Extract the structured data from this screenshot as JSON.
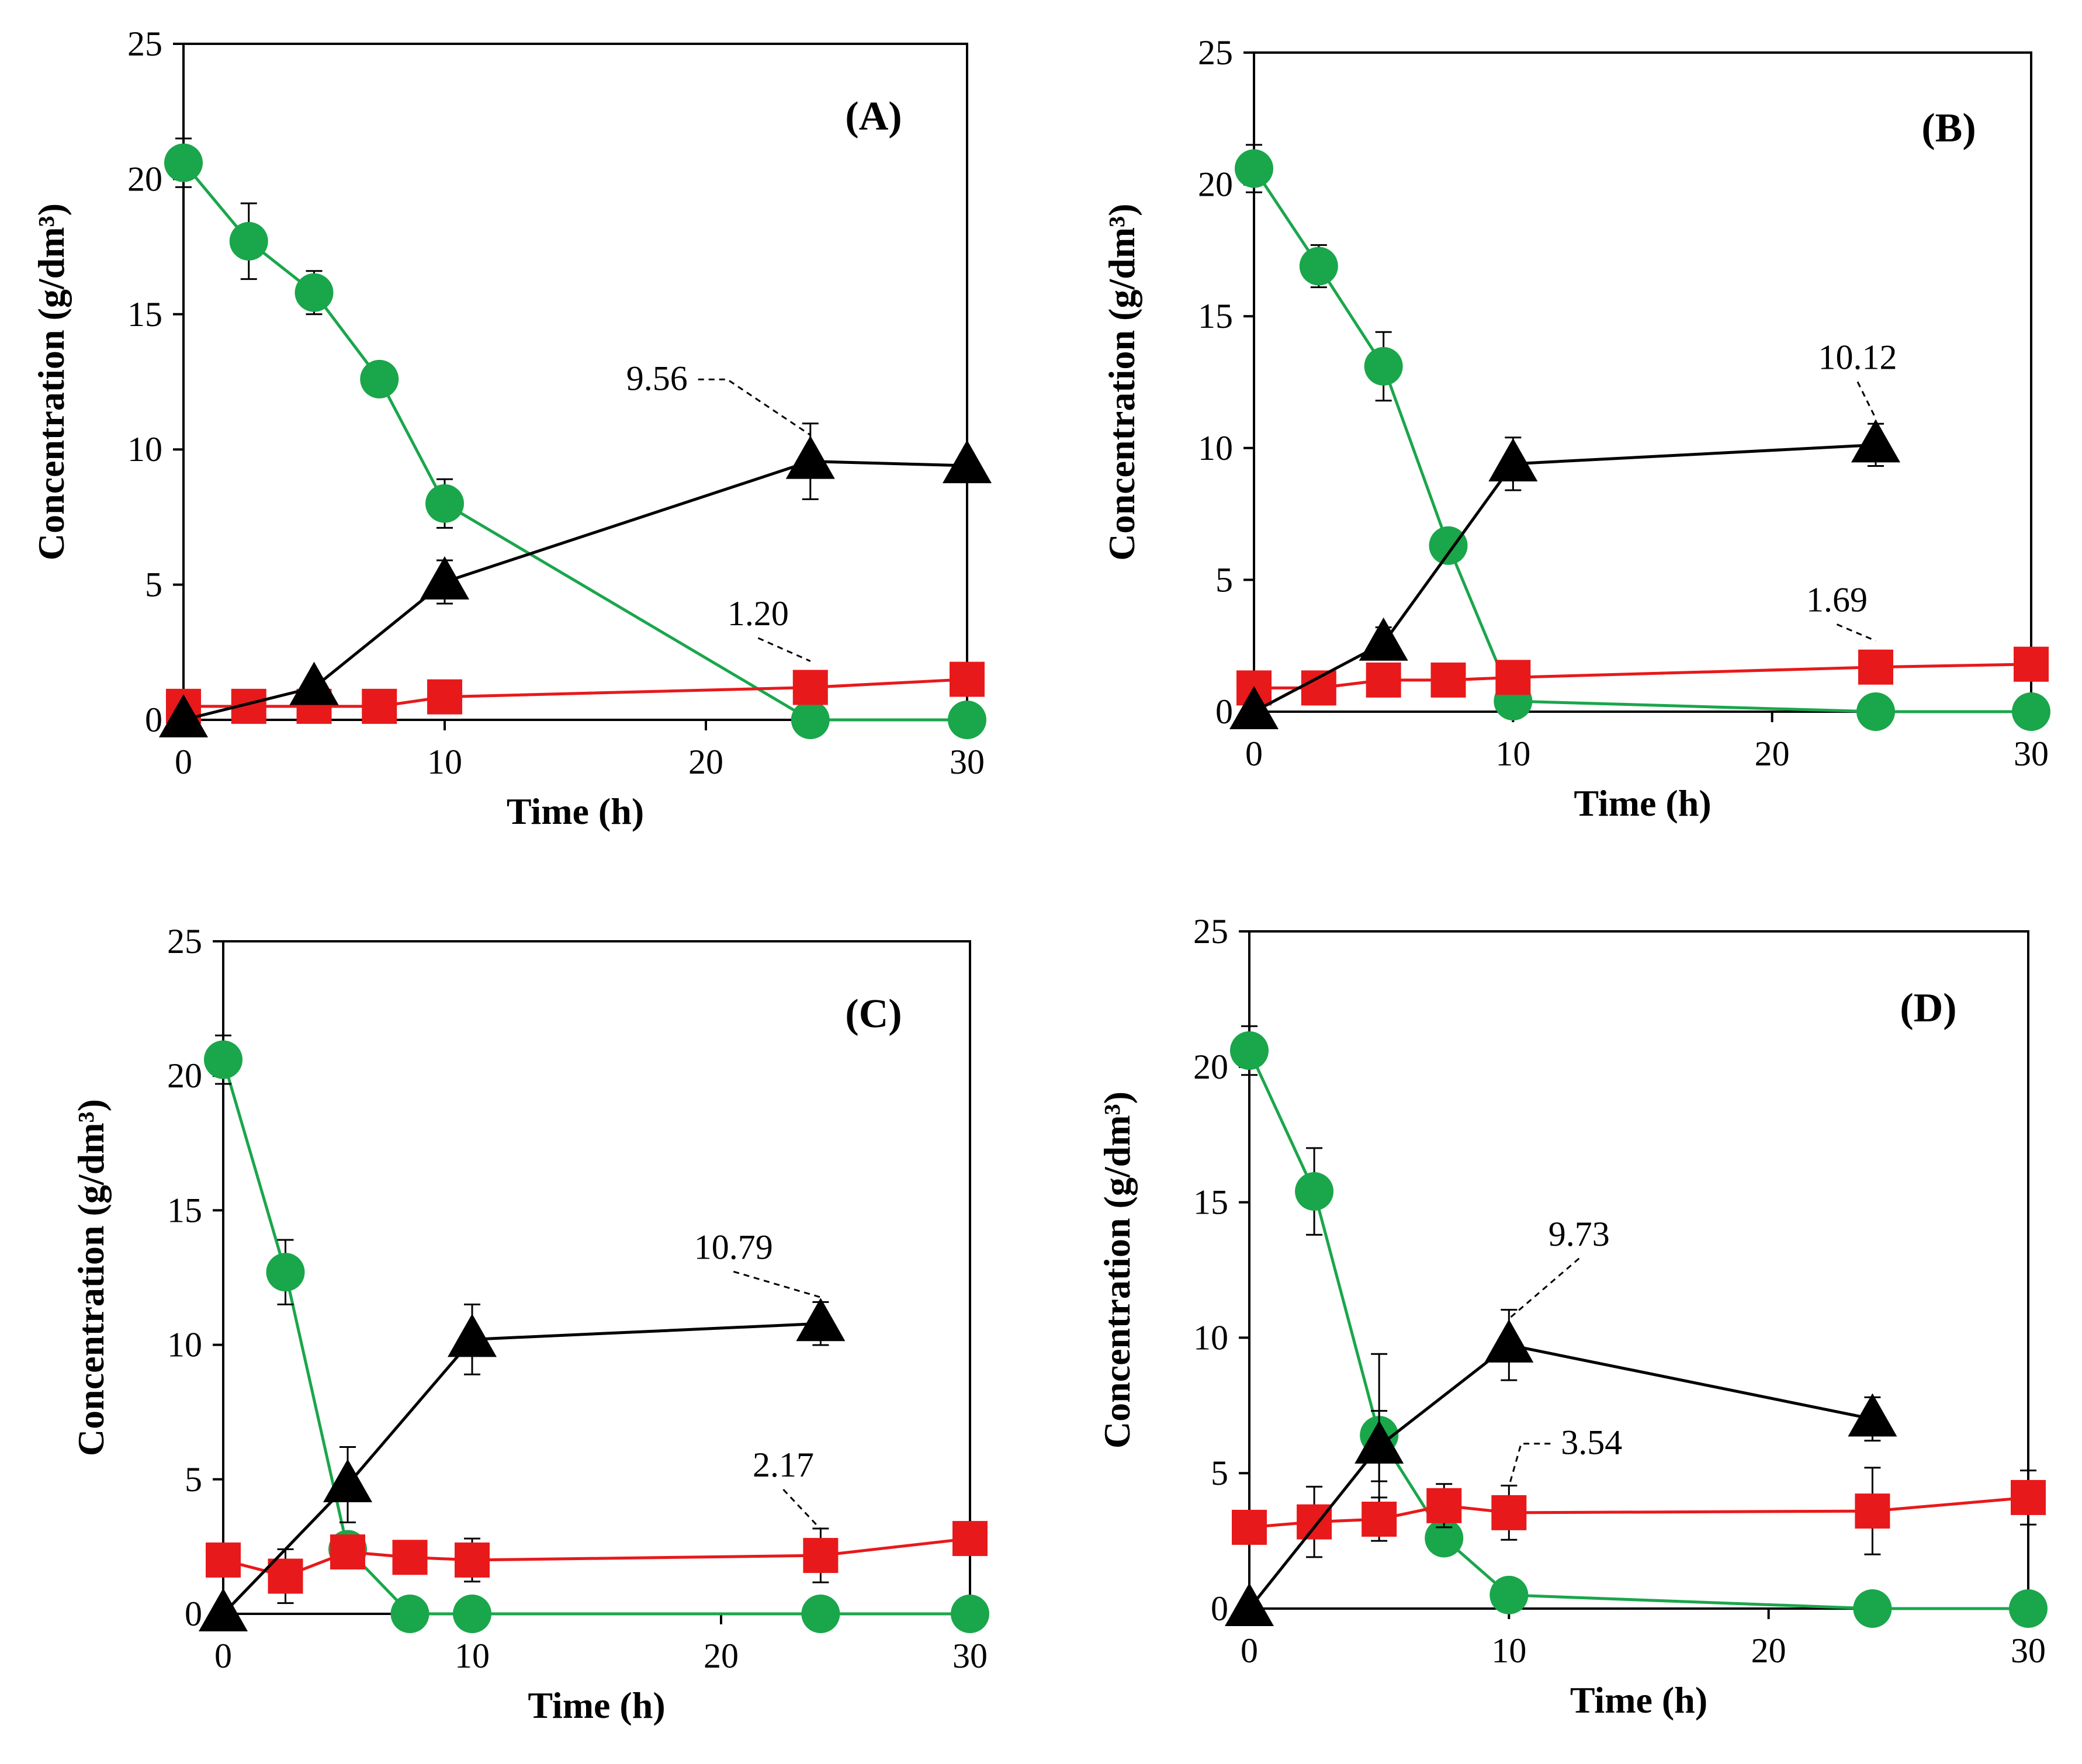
{
  "chart_data": [
    {
      "panel": "(A)",
      "type": "line",
      "xlabel": "Time (h)",
      "ylabel": "Concentration (g/dm³)",
      "xlim": [
        0,
        30
      ],
      "ylim": [
        0,
        25
      ],
      "xticks": [
        0,
        10,
        20,
        30
      ],
      "yticks": [
        0,
        5,
        10,
        15,
        20,
        25
      ],
      "series": [
        {
          "name": "green-circle",
          "marker": "circle",
          "color": "#1aa64b",
          "x": [
            0,
            2.5,
            5,
            7.5,
            10,
            24,
            30
          ],
          "y": [
            20.6,
            17.7,
            15.8,
            12.6,
            8.0,
            0.0,
            0.0
          ],
          "err": [
            0.9,
            1.4,
            0.8,
            0,
            0.9,
            0,
            0
          ]
        },
        {
          "name": "red-square",
          "marker": "square",
          "color": "#e8191b",
          "x": [
            0,
            2.5,
            5,
            7.5,
            10,
            24,
            30
          ],
          "y": [
            0.5,
            0.5,
            0.5,
            0.5,
            0.85,
            1.2,
            1.5
          ],
          "err": [
            0,
            0,
            0,
            0,
            0,
            0,
            0
          ]
        },
        {
          "name": "black-triangle",
          "marker": "triangle",
          "color": "#000000",
          "x": [
            0,
            5,
            10,
            24,
            30
          ],
          "y": [
            0.0,
            1.2,
            5.1,
            9.56,
            9.4
          ],
          "err": [
            0,
            0,
            0.8,
            1.4,
            0
          ]
        }
      ],
      "annotations": [
        {
          "text": "9.56",
          "x": 24,
          "y": 9.56,
          "tx": 19.3,
          "ty": 12.2,
          "anchor": "end"
        },
        {
          "text": "1.20",
          "x": 24,
          "y": 1.2,
          "tx": 22.0,
          "ty": 3.5,
          "anchor": "middle"
        }
      ]
    },
    {
      "panel": "(B)",
      "type": "line",
      "xlabel": "Time (h)",
      "ylabel": "Concentration (g/dm³)",
      "xlim": [
        0,
        30
      ],
      "ylim": [
        0,
        25
      ],
      "xticks": [
        0,
        10,
        20,
        30
      ],
      "yticks": [
        0,
        5,
        10,
        15,
        20,
        25
      ],
      "series": [
        {
          "name": "green-circle",
          "marker": "circle",
          "color": "#1aa64b",
          "x": [
            0,
            2.5,
            5,
            7.5,
            10,
            24,
            30
          ],
          "y": [
            20.6,
            16.9,
            13.1,
            6.3,
            0.4,
            0.0,
            0.0
          ],
          "err": [
            0.9,
            0.8,
            1.3,
            0,
            0,
            0,
            0
          ]
        },
        {
          "name": "red-square",
          "marker": "square",
          "color": "#e8191b",
          "x": [
            0,
            2.5,
            5,
            7.5,
            10,
            24,
            30
          ],
          "y": [
            0.9,
            0.9,
            1.2,
            1.2,
            1.3,
            1.69,
            1.8
          ],
          "err": [
            0,
            0,
            0,
            0,
            0,
            0,
            0
          ]
        },
        {
          "name": "black-triangle",
          "marker": "triangle",
          "color": "#000000",
          "x": [
            0,
            5,
            10,
            24
          ],
          "y": [
            0.0,
            2.6,
            9.4,
            10.12
          ],
          "err": [
            0,
            0.6,
            1.0,
            0.8
          ]
        }
      ],
      "annotations": [
        {
          "text": "10.12",
          "x": 24,
          "y": 10.12,
          "tx": 23.3,
          "ty": 13.0,
          "anchor": "middle"
        },
        {
          "text": "1.69",
          "x": 24,
          "y": 1.69,
          "tx": 22.5,
          "ty": 3.8,
          "anchor": "middle"
        }
      ]
    },
    {
      "panel": "(C)",
      "type": "line",
      "xlabel": "Time (h)",
      "ylabel": "Concentration (g/dm³)",
      "xlim": [
        0,
        30
      ],
      "ylim": [
        0,
        25
      ],
      "xticks": [
        0,
        10,
        20,
        30
      ],
      "yticks": [
        0,
        5,
        10,
        15,
        20,
        25
      ],
      "series": [
        {
          "name": "green-circle",
          "marker": "circle",
          "color": "#1aa64b",
          "x": [
            0,
            2.5,
            5,
            7.5,
            10,
            24,
            30
          ],
          "y": [
            20.6,
            12.7,
            2.4,
            0.0,
            0.0,
            0.0,
            0.0
          ],
          "err": [
            0.9,
            1.2,
            0,
            0,
            0,
            0,
            0
          ]
        },
        {
          "name": "red-square",
          "marker": "square",
          "color": "#e8191b",
          "x": [
            0,
            2.5,
            5,
            7.5,
            10,
            24,
            30
          ],
          "y": [
            2.0,
            1.4,
            2.3,
            2.1,
            2.0,
            2.17,
            2.8
          ],
          "err": [
            0,
            1.0,
            0,
            0,
            0.8,
            1.0,
            0
          ]
        },
        {
          "name": "black-triangle",
          "marker": "triangle",
          "color": "#000000",
          "x": [
            0,
            5,
            10,
            24
          ],
          "y": [
            0.0,
            4.8,
            10.2,
            10.79
          ],
          "err": [
            0,
            1.4,
            1.3,
            0.8
          ]
        }
      ],
      "annotations": [
        {
          "text": "10.79",
          "x": 24,
          "y": 10.79,
          "tx": 20.5,
          "ty": 13.2,
          "anchor": "middle"
        },
        {
          "text": "2.17",
          "x": 24,
          "y": 2.17,
          "tx": 22.5,
          "ty": 5.1,
          "anchor": "middle"
        }
      ]
    },
    {
      "panel": "(D)",
      "type": "line",
      "xlabel": "Time (h)",
      "ylabel": "Concentration (g/dm³)",
      "xlim": [
        0,
        30
      ],
      "ylim": [
        0,
        25
      ],
      "xticks": [
        0,
        10,
        20,
        30
      ],
      "yticks": [
        0,
        5,
        10,
        15,
        20,
        25
      ],
      "series": [
        {
          "name": "green-circle",
          "marker": "circle",
          "color": "#1aa64b",
          "x": [
            0,
            2.5,
            5,
            7.5,
            10,
            24,
            30
          ],
          "y": [
            20.6,
            15.4,
            6.4,
            2.6,
            0.5,
            0.0,
            0.0
          ],
          "err": [
            0.9,
            1.6,
            3.0,
            0,
            0,
            0,
            0
          ]
        },
        {
          "name": "red-square",
          "marker": "square",
          "color": "#e8191b",
          "x": [
            0,
            2.5,
            5,
            7.5,
            10,
            24,
            30
          ],
          "y": [
            3.0,
            3.2,
            3.3,
            3.8,
            3.54,
            3.6,
            4.1
          ],
          "err": [
            0,
            1.3,
            0.8,
            0.8,
            1.0,
            1.6,
            1.0
          ]
        },
        {
          "name": "black-triangle",
          "marker": "triangle",
          "color": "#000000",
          "x": [
            0,
            5,
            10,
            24
          ],
          "y": [
            0.0,
            6.0,
            9.73,
            7.0
          ],
          "err": [
            0,
            1.3,
            1.3,
            0.8
          ]
        }
      ],
      "annotations": [
        {
          "text": "9.73",
          "x": 10,
          "y": 9.73,
          "tx": 12.7,
          "ty": 13.4,
          "anchor": "middle"
        },
        {
          "text": "3.54",
          "x": 10,
          "y": 3.54,
          "tx": 12.0,
          "ty": 5.7,
          "anchor": "start"
        }
      ]
    }
  ]
}
